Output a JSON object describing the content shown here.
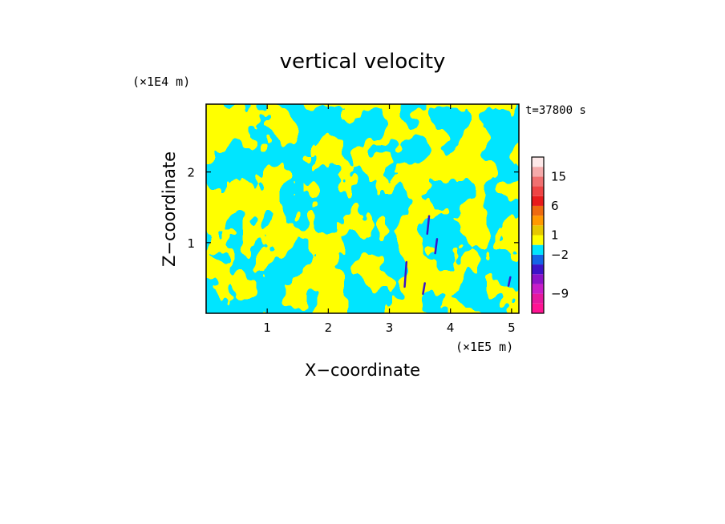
{
  "chart_data": {
    "type": "heatmap",
    "title": "vertical velocity",
    "xlabel": "X−coordinate",
    "ylabel": "Z−coordinate",
    "x_unit": "(×1E5 m)",
    "y_unit": "(×1E4 m)",
    "time_label": "t=37800 s",
    "xlim": [
      0,
      5.12
    ],
    "ylim": [
      0,
      2.96
    ],
    "x_ticks": [
      {
        "value": 1,
        "label": "1"
      },
      {
        "value": 2,
        "label": "2"
      },
      {
        "value": 3,
        "label": "3"
      },
      {
        "value": 4,
        "label": "4"
      },
      {
        "value": 5,
        "label": "5"
      }
    ],
    "y_ticks": [
      {
        "value": 1,
        "label": "1"
      },
      {
        "value": 2,
        "label": "2"
      }
    ],
    "colorbar": {
      "levels": [
        {
          "color": "#ff1493",
          "range": [
            -12,
            -10.5
          ]
        },
        {
          "color": "#e6199e",
          "range": [
            -10.5,
            -9
          ]
        },
        {
          "color": "#c81ec8",
          "range": [
            -9,
            -7
          ]
        },
        {
          "color": "#8c14c8",
          "range": [
            -7,
            -5
          ]
        },
        {
          "color": "#3c14c8",
          "range": [
            -5,
            -3
          ]
        },
        {
          "color": "#1464e6",
          "range": [
            -3,
            -2
          ]
        },
        {
          "color": "#00e5ff",
          "range": [
            -2,
            0
          ]
        },
        {
          "color": "#ffff00",
          "range": [
            0,
            1
          ]
        },
        {
          "color": "#e6c800",
          "range": [
            1,
            2
          ]
        },
        {
          "color": "#ff9900",
          "range": [
            2,
            4
          ]
        },
        {
          "color": "#ee6a10",
          "range": [
            4,
            6
          ]
        },
        {
          "color": "#e81b1b",
          "range": [
            6,
            9
          ]
        },
        {
          "color": "#ee4444",
          "range": [
            9,
            12
          ]
        },
        {
          "color": "#f07070",
          "range": [
            12,
            15
          ]
        },
        {
          "color": "#f5aaaa",
          "range": [
            15,
            18
          ]
        },
        {
          "color": "#fde8e8",
          "range": [
            18,
            24
          ]
        }
      ],
      "tick_labels": [
        {
          "value": 15,
          "label": "15"
        },
        {
          "value": 6,
          "label": "6"
        },
        {
          "value": 1,
          "label": "1"
        },
        {
          "value": -2,
          "label": "−2"
        },
        {
          "value": -9,
          "label": "−9"
        }
      ]
    },
    "field_description_colors": {
      "updraft": "#ffff00",
      "downdraft": "#00e5ff",
      "strong_down": "#3c14c8"
    }
  }
}
